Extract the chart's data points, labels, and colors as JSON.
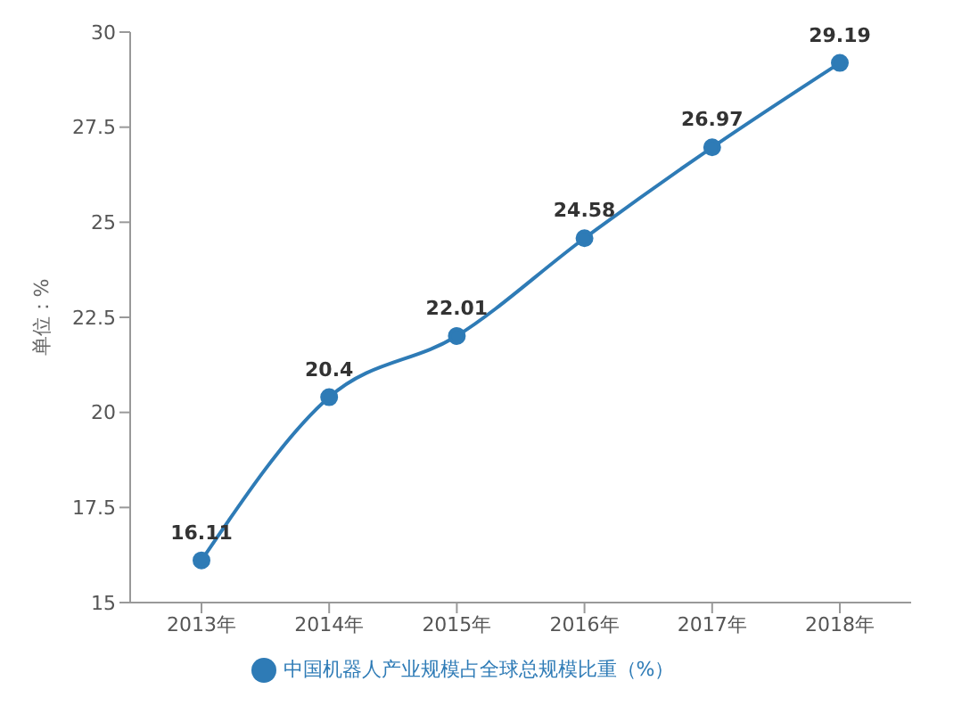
{
  "chart_data": {
    "type": "line",
    "categories": [
      "2013年",
      "2014年",
      "2015年",
      "2016年",
      "2017年",
      "2018年"
    ],
    "series": [
      {
        "name": "中国机器人产业规模占全球总规模比重（%）",
        "color": "#2e7bb6",
        "values": [
          16.11,
          20.4,
          22.01,
          24.58,
          26.97,
          29.19
        ]
      }
    ],
    "ylabel": "单位：%",
    "ylim": [
      15,
      30
    ],
    "yticks": [
      15,
      17.5,
      20,
      22.5,
      25,
      27.5,
      30
    ],
    "marker": "circle",
    "data_labels": true,
    "legend": "bottom",
    "grid": false
  }
}
